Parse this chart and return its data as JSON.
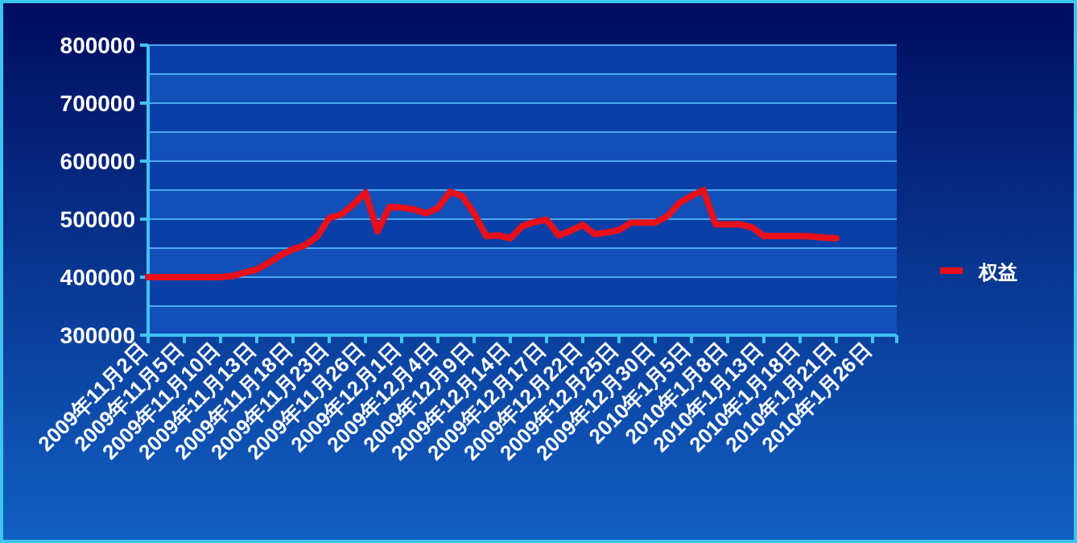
{
  "chart_data": {
    "type": "line",
    "categories": [
      "2009年11月2日",
      null,
      null,
      "2009年11月5日",
      null,
      null,
      "2009年11月10日",
      null,
      null,
      "2009年11月13日",
      null,
      null,
      "2009年11月18日",
      null,
      null,
      "2009年11月23日",
      null,
      null,
      "2009年11月26日",
      null,
      null,
      "2009年12月1日",
      null,
      null,
      "2009年12月4日",
      null,
      null,
      "2009年12月9日",
      null,
      null,
      "2009年12月14日",
      null,
      null,
      "2009年12月17日",
      null,
      null,
      "2009年12月22日",
      null,
      null,
      "2009年12月25日",
      null,
      null,
      "2009年12月30日",
      null,
      null,
      "2010年1月5日",
      null,
      null,
      "2010年1月8日",
      null,
      null,
      "2010年1月13日",
      null,
      null,
      "2010年1月18日",
      null,
      null,
      "2010年1月21日",
      null,
      null,
      "2010年1月26日",
      null
    ],
    "series": [
      {
        "name": "权益",
        "color": "#e8101a",
        "values": [
          400000,
          400000,
          400000,
          400000,
          400000,
          400000,
          400000,
          402000,
          408000,
          413000,
          425000,
          438000,
          448000,
          455000,
          470000,
          502000,
          508000,
          525000,
          546000,
          479000,
          521000,
          520000,
          517000,
          510000,
          519000,
          547000,
          540000,
          510000,
          471000,
          472000,
          467000,
          488000,
          495000,
          499000,
          472000,
          480000,
          490000,
          474000,
          477000,
          481000,
          494000,
          494000,
          494000,
          505000,
          528000,
          540000,
          550000,
          491000,
          491000,
          491000,
          486000,
          471000,
          471000,
          471000,
          471000,
          470000,
          468000,
          467000,
          null,
          null,
          null,
          null
        ]
      }
    ],
    "ylim": [
      300000,
      800000
    ],
    "yticks": [
      300000,
      {
        "value": 350000,
        "label": null
      },
      400000,
      {
        "value": 450000,
        "label": null
      },
      500000,
      {
        "value": 550000,
        "label": null
      },
      600000,
      {
        "value": 650000,
        "label": null
      },
      700000,
      {
        "value": 750000,
        "label": null
      },
      800000
    ],
    "grid": "y",
    "legend": "right"
  }
}
